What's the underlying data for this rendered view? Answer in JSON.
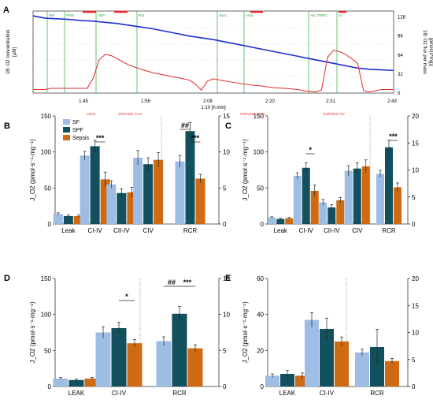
{
  "figure": {
    "panel_labels": [
      "A",
      "B",
      "C",
      "D",
      "E"
    ]
  },
  "chart_data": [
    {
      "panel": "A",
      "type": "line",
      "ylabel_left": "1B: O2 concentration",
      "ylabel_left_unit": "[µM]",
      "ylabel_right": "1B: O2 flux per mass",
      "ylabel_right_unit": "[pmol/(s*mg)]",
      "xlabel": "1:10 [h:min]",
      "x_ticks": [
        "1:45",
        "1:56",
        "2:08",
        "2:20",
        "2:31",
        "2:43"
      ],
      "y_right_ticks": [
        0,
        32,
        64,
        96,
        128
      ],
      "events": [
        "PM",
        "PMG",
        "ADP",
        "Rot",
        "Succ",
        "Ama",
        "Asc TMPD",
        "Az"
      ],
      "state_labels": [
        "LEAK",
        "OXPHOS CI-IV",
        "OXPHOS CII-IV",
        "OXPHOS CIV"
      ],
      "series": [
        {
          "key": "o2_concentration",
          "color": "#1f2fd0",
          "x": [
            0,
            2,
            4,
            6,
            8,
            10,
            12,
            14,
            16,
            18,
            20,
            22,
            24,
            26,
            28,
            30,
            32,
            34,
            36,
            38,
            40,
            42,
            44,
            46,
            48,
            50,
            52,
            54,
            56,
            58,
            60
          ],
          "y": [
            130,
            126,
            125,
            124,
            122,
            121,
            119,
            117,
            114,
            111,
            108,
            104,
            100,
            96,
            93,
            90,
            86,
            82,
            78,
            74,
            70,
            66,
            62,
            58,
            54,
            50,
            46,
            42,
            40,
            39,
            38
          ]
        },
        {
          "key": "o2_flux",
          "color": "#e32b2b",
          "x": [
            0,
            1,
            2,
            3,
            5,
            7,
            9,
            10,
            11,
            12,
            13,
            14,
            15,
            16,
            18,
            20,
            22,
            24,
            26,
            27,
            28,
            29,
            30,
            31,
            32,
            34,
            36,
            38,
            40,
            42,
            44,
            45,
            46,
            47,
            48,
            49,
            50,
            51,
            52,
            53,
            54,
            55,
            56,
            58,
            60
          ],
          "y": [
            6,
            6,
            6,
            8,
            8,
            8,
            8,
            25,
            56,
            65,
            63,
            58,
            52,
            47,
            40,
            34,
            30,
            26,
            22,
            15,
            5,
            20,
            24,
            22,
            20,
            17,
            14,
            12,
            9,
            8,
            6,
            4,
            3,
            2,
            5,
            60,
            72,
            70,
            65,
            58,
            50,
            4,
            2,
            6,
            6
          ]
        }
      ]
    },
    {
      "panel": "B",
      "type": "bar",
      "ylabel": "J_O2 (pmol·s⁻¹·mg⁻¹)",
      "legend": [
        "SF",
        "SPF",
        "Sepsis"
      ],
      "categories": [
        "Leak",
        "CI-IV",
        "CII-IV",
        "CIV",
        "RCR"
      ],
      "ylim_left": [
        0,
        150
      ],
      "ylim_right": [
        0,
        15
      ],
      "series": [
        {
          "name": "SF",
          "values": [
            14,
            95,
            55,
            92,
            8.7
          ],
          "errors": [
            1.5,
            6,
            5,
            10,
            0.8
          ]
        },
        {
          "name": "SPF",
          "values": [
            11,
            108,
            43,
            83,
            12.9
          ],
          "errors": [
            1.5,
            8,
            6,
            9,
            1.2
          ]
        },
        {
          "name": "Sepsis",
          "values": [
            11,
            62,
            44,
            89,
            6.3
          ],
          "errors": [
            1.5,
            10,
            7,
            10,
            0.6
          ]
        }
      ],
      "significance": [
        {
          "category": "CI-IV",
          "text": "***"
        },
        {
          "category": "RCR",
          "text": "##"
        },
        {
          "category": "RCR",
          "text": "***"
        }
      ],
      "right_axis_for": [
        "RCR"
      ]
    },
    {
      "panel": "C",
      "type": "bar",
      "ylabel": "J_O2 (pmol·s⁻¹·mg⁻¹)",
      "categories": [
        "Leak",
        "CI-IV",
        "CII-IV",
        "CIV",
        "RCR"
      ],
      "ylim_left": [
        0,
        150
      ],
      "ylim_right": [
        0,
        20
      ],
      "series": [
        {
          "name": "SF",
          "values": [
            9,
            67,
            30,
            74,
            9.3
          ],
          "errors": [
            1,
            4,
            4,
            7,
            0.6
          ]
        },
        {
          "name": "SPF",
          "values": [
            7,
            78,
            23,
            77,
            14.2
          ],
          "errors": [
            1,
            7,
            4,
            8,
            1.3
          ]
        },
        {
          "name": "Sepsis",
          "values": [
            8,
            46,
            33,
            80,
            6.8
          ],
          "errors": [
            1,
            8,
            4,
            9,
            0.8
          ]
        }
      ],
      "significance": [
        {
          "category": "CI-IV",
          "text": "*"
        },
        {
          "category": "RCR",
          "text": "***"
        }
      ],
      "right_axis_for": [
        "RCR"
      ]
    },
    {
      "panel": "D",
      "type": "bar",
      "ylabel": "J_O2 (pmol·s⁻¹·mg⁻¹)",
      "categories": [
        "LEAK",
        "CI-IV",
        "RCR"
      ],
      "ylim_left": [
        0,
        150
      ],
      "ylim_right": [
        0,
        15
      ],
      "series": [
        {
          "name": "SF",
          "values": [
            11,
            75,
            6.3
          ],
          "errors": [
            1.5,
            8,
            0.6
          ]
        },
        {
          "name": "SPF",
          "values": [
            9,
            81,
            10.1
          ],
          "errors": [
            1.5,
            8,
            1.0
          ]
        },
        {
          "name": "Sepsis",
          "values": [
            11,
            60,
            5.3
          ],
          "errors": [
            1.5,
            5,
            0.5
          ]
        }
      ],
      "significance": [
        {
          "category": "CI-IV",
          "text": "*"
        },
        {
          "category": "RCR",
          "text": "##"
        },
        {
          "category": "RCR",
          "text": "***"
        }
      ],
      "right_axis_for": [
        "RCR"
      ]
    },
    {
      "panel": "E",
      "type": "bar",
      "ylabel": "J_O2 (pmol·s⁻¹·mg⁻¹)",
      "categories": [
        "LEAK",
        "CI-IV",
        "RCR"
      ],
      "ylim_left": [
        0,
        60
      ],
      "ylim_right": [
        0,
        20
      ],
      "series": [
        {
          "name": "SF",
          "values": [
            6,
            37,
            6.3
          ],
          "errors": [
            1,
            4,
            0.6
          ]
        },
        {
          "name": "SPF",
          "values": [
            7,
            32,
            7.3
          ],
          "errors": [
            2,
            6,
            3.3
          ]
        },
        {
          "name": "Sepsis",
          "values": [
            6,
            25,
            4.7
          ],
          "errors": [
            1.5,
            2.5,
            0.5
          ]
        }
      ],
      "significance": [],
      "right_axis_for": [
        "RCR"
      ]
    }
  ],
  "colors": {
    "SF": "#9dbde4",
    "SPF": "#12505e",
    "Sepsis": "#cf6a14",
    "o2": "#1f2fd0",
    "flux": "#e32b2b",
    "events": "#2aa63a"
  }
}
